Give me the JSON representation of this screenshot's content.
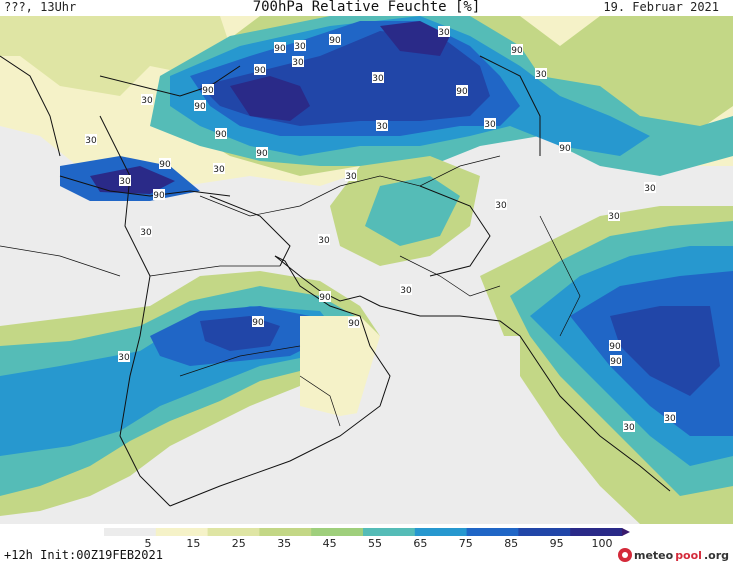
{
  "header": {
    "left_text": "???, 13Uhr",
    "title": "700hPa Relative Feuchte [%]",
    "date": "19. Februar 2021"
  },
  "footer": {
    "run_info": "+12h Init:00Z19FEB2021",
    "logo_prefix": "meteo",
    "logo_main": "pool",
    "logo_suffix": ".org"
  },
  "legend": {
    "ticks": [
      "5",
      "15",
      "25",
      "35",
      "45",
      "55",
      "65",
      "75",
      "85",
      "95",
      "100"
    ],
    "colors": [
      "#ececec",
      "#f5f2c8",
      "#dfe5a4",
      "#c3d786",
      "#9fcf7c",
      "#55bcb7",
      "#2798cf",
      "#2066c6",
      "#2146a8",
      "#2a2a88",
      "#3a1a6c"
    ]
  },
  "map": {
    "contour_labels": [
      "90",
      "90",
      "30",
      "90",
      "30",
      "90",
      "30",
      "90",
      "90",
      "30",
      "30",
      "90",
      "30",
      "90",
      "90",
      "90",
      "90",
      "30",
      "30",
      "30",
      "90",
      "30",
      "30",
      "30",
      "30",
      "30",
      "90",
      "90",
      "30",
      "30",
      "30",
      "90",
      "30",
      "30",
      "90",
      "30",
      "90",
      "30"
    ],
    "colors": {
      "dry": "#ececec",
      "pale": "#f5f2c8",
      "olive": "#c3d786",
      "teal": "#55bcb7",
      "blue": "#2798cf",
      "royal": "#2066c6",
      "navy": "#2146a8",
      "deep": "#2a2a88"
    }
  }
}
